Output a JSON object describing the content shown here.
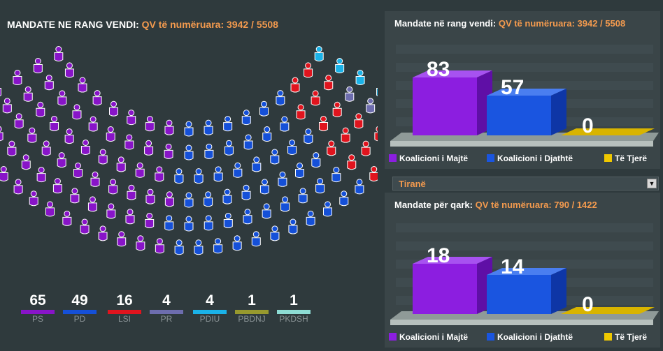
{
  "colors": {
    "PS": "#8814c8",
    "PD": "#1550d8",
    "LSI": "#e0141e",
    "PR": "#6d6dae",
    "PDIU": "#1ab2e8",
    "PBDNJ": "#97992e",
    "PKDSH": "#8ddcd4",
    "left_coalition": "#8c1ee0",
    "right_coalition": "#1a55e0",
    "others": "#f0c800",
    "accent": "#f39a4e"
  },
  "header": {
    "title_label": "MANDATE NE RANG VENDI:",
    "title_counted": "QV të numëruara: 3942 / 5508"
  },
  "parties": [
    {
      "name": "PS",
      "seats": 65,
      "seats_label": "65",
      "color": "#8814c8"
    },
    {
      "name": "PD",
      "seats": 49,
      "seats_label": "49",
      "color": "#1550d8"
    },
    {
      "name": "LSI",
      "seats": 16,
      "seats_label": "16",
      "color": "#e0141e"
    },
    {
      "name": "PR",
      "seats": 4,
      "seats_label": "4",
      "color": "#6d6dae"
    },
    {
      "name": "PDIU",
      "seats": 4,
      "seats_label": "4",
      "color": "#1ab2e8"
    },
    {
      "name": "PBDNJ",
      "seats": 1,
      "seats_label": "1",
      "color": "#97992e"
    },
    {
      "name": "PKDSH",
      "seats": 1,
      "seats_label": "1",
      "color": "#8ddcd4"
    }
  ],
  "panels": {
    "country": {
      "title_label": "Mandate në rang vendi:",
      "title_counted": "QV të numëruara: 3942 / 5508"
    },
    "region": {
      "selected_region": "Tiranë",
      "title_label": "Mandate për qark:",
      "title_counted": "QV të numëruara: 790 / 1422"
    },
    "legend": [
      "Koalicioni i Majtë",
      "Koalicioni i Djathtë",
      "Të Tjerë"
    ]
  },
  "chart_data": [
    {
      "type": "waffle",
      "title": "MANDATE NE RANG VENDI",
      "categories": [
        "PS",
        "PD",
        "LSI",
        "PR",
        "PDIU",
        "PBDNJ",
        "PKDSH"
      ],
      "values": [
        65,
        49,
        16,
        4,
        4,
        1,
        1
      ]
    },
    {
      "type": "bar",
      "title": "Mandate në rang vendi",
      "categories": [
        "Koalicioni i Majtë",
        "Koalicioni i Djathtë",
        "Të Tjerë"
      ],
      "values": [
        83,
        57,
        0
      ],
      "value_labels": [
        "83",
        "57",
        "0"
      ],
      "ylim": [
        0,
        100
      ]
    },
    {
      "type": "bar",
      "title": "Mandate për qark: Tiranë",
      "categories": [
        "Koalicioni i Majtë",
        "Koalicioni i Djathtë",
        "Të Tjerë"
      ],
      "values": [
        18,
        14,
        0
      ],
      "value_labels": [
        "18",
        "14",
        "0"
      ],
      "ylim": [
        0,
        25
      ]
    }
  ]
}
